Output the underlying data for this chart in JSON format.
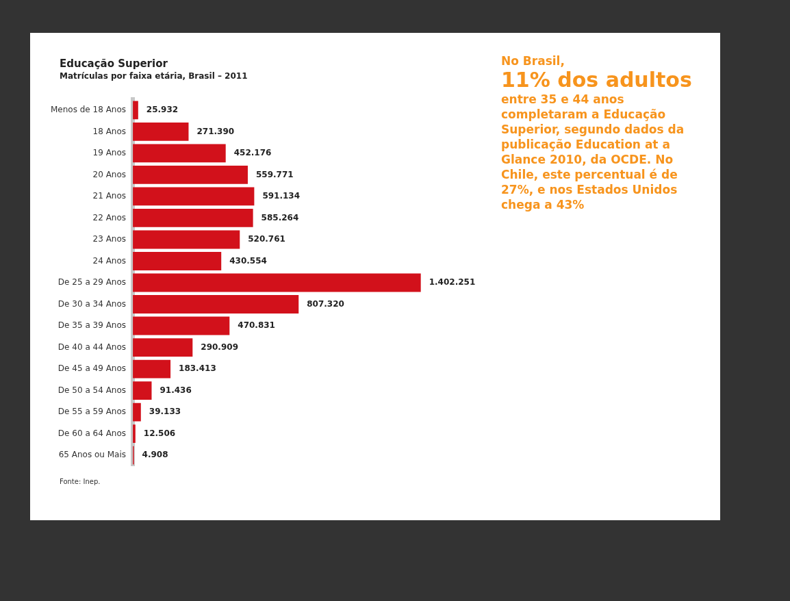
{
  "chart_data": {
    "type": "bar",
    "orientation": "horizontal",
    "title": "Educação Superior",
    "subtitle": "Matrículas por faixa etária, Brasil – 2011",
    "categories": [
      "Menos de 18 Anos",
      "18 Anos",
      "19 Anos",
      "20 Anos",
      "21 Anos",
      "22 Anos",
      "23 Anos",
      "24 Anos",
      "De 25 a 29 Anos",
      "De 30 a 34 Anos",
      "De 35 a 39 Anos",
      "De 40 a 44 Anos",
      "De 45 a 49 Anos",
      "De 50 a 54 Anos",
      "De 55 a 59 Anos",
      "De 60 a 64 Anos",
      "65 Anos ou Mais"
    ],
    "values": [
      25932,
      271390,
      452176,
      559771,
      591134,
      585264,
      520761,
      430554,
      1402251,
      807320,
      470831,
      290909,
      183413,
      91436,
      39133,
      12506,
      4908
    ],
    "value_labels": [
      "25.932",
      "271.390",
      "452.176",
      "559.771",
      "591.134",
      "585.264",
      "520.761",
      "430.554",
      "1.402.251",
      "807.320",
      "470.831",
      "290.909",
      "183.413",
      "91.436",
      "39.133",
      "12.506",
      "4.908"
    ],
    "color": "#d2111b",
    "legend": false,
    "tick_labels": "y",
    "annotations": [
      "No Brasil,",
      "11% dos adultos",
      "entre 35 e 44 anos completaram a Educação Superior, segundo dados da publicação Education at a Glance 2010, da OCDE. No Chile, este percentual é de 27%, e nos Estados Unidos chega a 43%",
      "Fonte: Inep."
    ]
  }
}
